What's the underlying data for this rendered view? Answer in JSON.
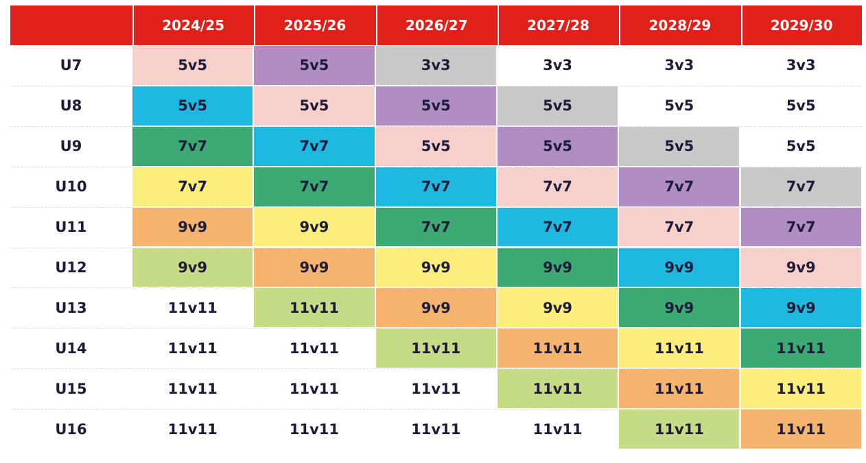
{
  "table": {
    "header_color": "#e0201b",
    "columns": [
      "2024/25",
      "2025/26",
      "2026/27",
      "2027/28",
      "2028/29",
      "2029/30"
    ],
    "rows": [
      {
        "label": "U7",
        "cells": [
          {
            "text": "5v5",
            "color": "#f8d0cb"
          },
          {
            "text": "5v5",
            "color": "#b08ec4"
          },
          {
            "text": "3v3",
            "color": "#c8c8c8"
          },
          {
            "text": "3v3",
            "color": "#ffffff"
          },
          {
            "text": "3v3",
            "color": "#ffffff"
          },
          {
            "text": "3v3",
            "color": "#ffffff"
          }
        ]
      },
      {
        "label": "U8",
        "cells": [
          {
            "text": "5v5",
            "color": "#1fb8e0"
          },
          {
            "text": "5v5",
            "color": "#f8d0cb"
          },
          {
            "text": "5v5",
            "color": "#b08ec4"
          },
          {
            "text": "5v5",
            "color": "#c8c8c8"
          },
          {
            "text": "5v5",
            "color": "#ffffff"
          },
          {
            "text": "5v5",
            "color": "#ffffff"
          }
        ]
      },
      {
        "label": "U9",
        "cells": [
          {
            "text": "7v7",
            "color": "#3daa74"
          },
          {
            "text": "7v7",
            "color": "#1fb8e0"
          },
          {
            "text": "5v5",
            "color": "#f8d0cb"
          },
          {
            "text": "5v5",
            "color": "#b08ec4"
          },
          {
            "text": "5v5",
            "color": "#c8c8c8"
          },
          {
            "text": "5v5",
            "color": "#ffffff"
          }
        ]
      },
      {
        "label": "U10",
        "cells": [
          {
            "text": "7v7",
            "color": "#fbee7a"
          },
          {
            "text": "7v7",
            "color": "#3daa74"
          },
          {
            "text": "7v7",
            "color": "#1fb8e0"
          },
          {
            "text": "7v7",
            "color": "#f8d0cb"
          },
          {
            "text": "7v7",
            "color": "#b08ec4"
          },
          {
            "text": "7v7",
            "color": "#c8c8c8"
          }
        ]
      },
      {
        "label": "U11",
        "cells": [
          {
            "text": "9v9",
            "color": "#f6b36e"
          },
          {
            "text": "9v9",
            "color": "#fbee7a"
          },
          {
            "text": "7v7",
            "color": "#3daa74"
          },
          {
            "text": "7v7",
            "color": "#1fb8e0"
          },
          {
            "text": "7v7",
            "color": "#f8d0cb"
          },
          {
            "text": "7v7",
            "color": "#b08ec4"
          }
        ]
      },
      {
        "label": "U12",
        "cells": [
          {
            "text": "9v9",
            "color": "#c5db86"
          },
          {
            "text": "9v9",
            "color": "#f6b36e"
          },
          {
            "text": "9v9",
            "color": "#fbee7a"
          },
          {
            "text": "9v9",
            "color": "#3daa74"
          },
          {
            "text": "9v9",
            "color": "#1fb8e0"
          },
          {
            "text": "9v9",
            "color": "#f8d0cb"
          }
        ]
      },
      {
        "label": "U13",
        "cells": [
          {
            "text": "11v11",
            "color": "#ffffff"
          },
          {
            "text": "11v11",
            "color": "#c5db86"
          },
          {
            "text": "9v9",
            "color": "#f6b36e"
          },
          {
            "text": "9v9",
            "color": "#fbee7a"
          },
          {
            "text": "9v9",
            "color": "#3daa74"
          },
          {
            "text": "9v9",
            "color": "#1fb8e0"
          }
        ]
      },
      {
        "label": "U14",
        "cells": [
          {
            "text": "11v11",
            "color": "#ffffff"
          },
          {
            "text": "11v11",
            "color": "#ffffff"
          },
          {
            "text": "11v11",
            "color": "#c5db86"
          },
          {
            "text": "11v11",
            "color": "#f6b36e"
          },
          {
            "text": "11v11",
            "color": "#fbee7a"
          },
          {
            "text": "11v11",
            "color": "#3daa74"
          }
        ]
      },
      {
        "label": "U15",
        "cells": [
          {
            "text": "11v11",
            "color": "#ffffff"
          },
          {
            "text": "11v11",
            "color": "#ffffff"
          },
          {
            "text": "11v11",
            "color": "#ffffff"
          },
          {
            "text": "11v11",
            "color": "#c5db86"
          },
          {
            "text": "11v11",
            "color": "#f6b36e"
          },
          {
            "text": "11v11",
            "color": "#fbee7a"
          }
        ]
      },
      {
        "label": "U16",
        "cells": [
          {
            "text": "11v11",
            "color": "#ffffff"
          },
          {
            "text": "11v11",
            "color": "#ffffff"
          },
          {
            "text": "11v11",
            "color": "#ffffff"
          },
          {
            "text": "11v11",
            "color": "#ffffff"
          },
          {
            "text": "11v11",
            "color": "#c5db86"
          },
          {
            "text": "11v11",
            "color": "#f6b36e"
          }
        ]
      }
    ]
  }
}
